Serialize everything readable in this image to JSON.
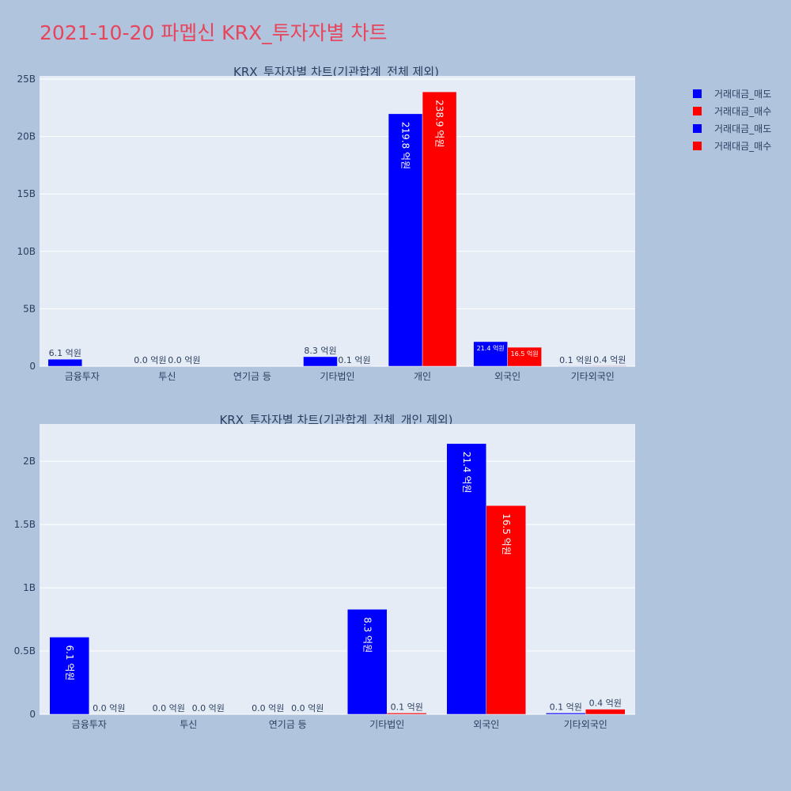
{
  "page_title": "2021-10-20 파멥신 KRX_투자자별 차트",
  "legend": [
    {
      "label": "거래대금_매도",
      "color": "#0000ff"
    },
    {
      "label": "거래대금_매수",
      "color": "#ff0000"
    },
    {
      "label": "거래대금_매도",
      "color": "#0000ff"
    },
    {
      "label": "거래대금_매수",
      "color": "#ff0000"
    }
  ],
  "chart_data": [
    {
      "type": "bar",
      "title": "KRX_투자자별 차트(기관합계_전체 제외)",
      "categories": [
        "금융투자",
        "투신",
        "연기금 등",
        "기타법인",
        "개인",
        "외국인",
        "기타외국인"
      ],
      "ylim": [
        0,
        25000000000
      ],
      "yticks": [
        {
          "value": 0,
          "label": "0"
        },
        {
          "value": 5000000000,
          "label": "5B"
        },
        {
          "value": 10000000000,
          "label": "10B"
        },
        {
          "value": 15000000000,
          "label": "15B"
        },
        {
          "value": 20000000000,
          "label": "20B"
        },
        {
          "value": 25000000000,
          "label": "25B"
        }
      ],
      "series": [
        {
          "name": "거래대금_매도",
          "color": "#0000ff",
          "values": [
            610000000,
            0,
            null,
            830000000,
            21980000000,
            2140000000,
            10000000
          ],
          "labels": [
            "6.1 억원",
            "0.0 억원",
            "",
            "8.3 억원",
            "219.8 억원",
            "21.4 억원",
            "0.1 억원"
          ]
        },
        {
          "name": "거래대금_매수",
          "color": "#ff0000",
          "values": [
            null,
            0,
            null,
            10000000,
            23890000000,
            1650000000,
            40000000
          ],
          "labels": [
            "",
            "0.0 억원",
            "",
            "0.1 억원",
            "238.9 억원",
            "16.5 억원",
            "0.4 억원"
          ]
        }
      ]
    },
    {
      "type": "bar",
      "title": "KRX_투자자별 차트(기관합계_전체_개인 제외)",
      "categories": [
        "금융투자",
        "투신",
        "연기금 등",
        "기타법인",
        "외국인",
        "기타외국인"
      ],
      "ylim": [
        0,
        2270000000
      ],
      "yticks": [
        {
          "value": 0,
          "label": "0"
        },
        {
          "value": 500000000,
          "label": "0.5B"
        },
        {
          "value": 1000000000,
          "label": "1B"
        },
        {
          "value": 1500000000,
          "label": "1.5B"
        },
        {
          "value": 2000000000,
          "label": "2B"
        }
      ],
      "series": [
        {
          "name": "거래대금_매도",
          "color": "#0000ff",
          "values": [
            610000000,
            0,
            0,
            830000000,
            2140000000,
            10000000
          ],
          "labels": [
            "6.1 억원",
            "0.0 억원",
            "0.0 억원",
            "8.3 억원",
            "21.4 억원",
            "0.1 억원"
          ]
        },
        {
          "name": "거래대금_매수",
          "color": "#ff0000",
          "values": [
            0,
            0,
            0,
            10000000,
            1650000000,
            40000000
          ],
          "labels": [
            "0.0 억원",
            "0.0 억원",
            "0.0 억원",
            "0.1 억원",
            "16.5 억원",
            "0.4 억원"
          ]
        }
      ]
    }
  ]
}
